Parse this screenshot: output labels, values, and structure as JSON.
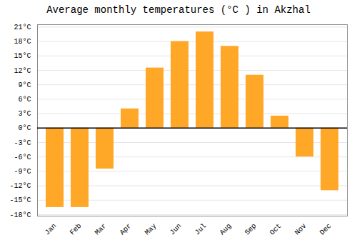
{
  "chart_data": {
    "type": "bar",
    "title": "Average monthly temperatures (°C ) in Akzhal",
    "categories": [
      "Jan",
      "Feb",
      "Mar",
      "Apr",
      "May",
      "Jun",
      "Jul",
      "Aug",
      "Sep",
      "Oct",
      "Nov",
      "Dec"
    ],
    "values": [
      -16.5,
      -16.5,
      -8.5,
      4.0,
      12.5,
      18.0,
      20.0,
      17.0,
      11.0,
      2.5,
      -6.0,
      -13.0
    ],
    "color": "#FFA726",
    "ylim": [
      -18.3,
      21.5
    ],
    "yticks": [
      {
        "value": -18,
        "label": "-18°C"
      },
      {
        "value": -15,
        "label": "-15°C"
      },
      {
        "value": -12,
        "label": "-12°C"
      },
      {
        "value": -9,
        "label": "-9°C"
      },
      {
        "value": -6,
        "label": "-6°C"
      },
      {
        "value": -3,
        "label": "-3°C"
      },
      {
        "value": 0,
        "label": "0°C"
      },
      {
        "value": 3,
        "label": "3°C"
      },
      {
        "value": 6,
        "label": "6°C"
      },
      {
        "value": 9,
        "label": "9°C"
      },
      {
        "value": 12,
        "label": "12°C"
      },
      {
        "value": 15,
        "label": "15°C"
      },
      {
        "value": 18,
        "label": "18°C"
      },
      {
        "value": 21,
        "label": "21°C"
      }
    ],
    "grid": true
  }
}
